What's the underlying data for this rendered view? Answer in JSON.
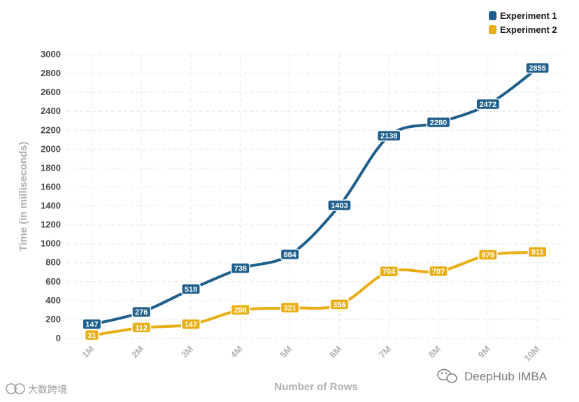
{
  "chart_data": {
    "type": "line",
    "categories": [
      "1M",
      "2M",
      "3M",
      "4M",
      "5M",
      "6M",
      "7M",
      "8M",
      "9M",
      "10M"
    ],
    "series": [
      {
        "name": "Experiment 1",
        "color": "#1f5f8b",
        "values": [
          147,
          276,
          518,
          738,
          884,
          1403,
          2138,
          2280,
          2472,
          2855
        ]
      },
      {
        "name": "Experiment 2",
        "color": "#e8ae14",
        "values": [
          31,
          112,
          147,
          298,
          321,
          356,
          704,
          707,
          879,
          911
        ]
      }
    ],
    "title": "",
    "xlabel": "Number of Rows",
    "ylabel": "Time (in milliseconds)",
    "ylim": [
      0,
      3000
    ],
    "yticks": [
      0,
      200,
      400,
      600,
      800,
      1000,
      1200,
      1400,
      1600,
      1800,
      2000,
      2200,
      2400,
      2600,
      2800,
      3000
    ],
    "grid": true,
    "legend_position": "top-right",
    "data_labels": true
  },
  "watermark": {
    "main": "DeepHub IMBA",
    "corner": "大数跨境"
  }
}
